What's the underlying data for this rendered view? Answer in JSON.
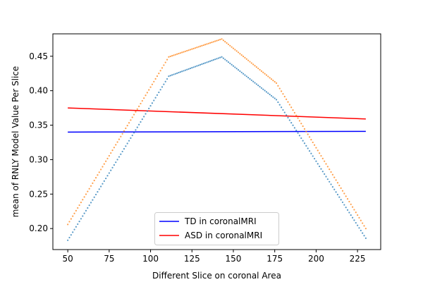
{
  "chart_data": {
    "type": "line",
    "title": "",
    "xlabel": "Different Slice on coronal Area",
    "ylabel": "mean of RNLY Model Value Per Slice",
    "xlim": [
      41,
      239
    ],
    "ylim": [
      0.1695,
      0.4825
    ],
    "xticks": [
      50,
      75,
      100,
      125,
      150,
      175,
      200,
      225
    ],
    "yticks": [
      0.2,
      0.25,
      0.3,
      0.35,
      0.4,
      0.45
    ],
    "xtick_labels": [
      "50",
      "75",
      "100",
      "125",
      "150",
      "175",
      "200",
      "225"
    ],
    "ytick_labels": [
      "0.20",
      "0.25",
      "0.30",
      "0.35",
      "0.40",
      "0.45"
    ],
    "grid": false,
    "legend_position": "lower center",
    "series": [
      {
        "name": "TD in coronalMRI",
        "style": "solid",
        "color": "#0000ff",
        "x": [
          50,
          230
        ],
        "y": [
          0.34,
          0.341
        ]
      },
      {
        "name": "ASD in coronalMRI",
        "style": "solid",
        "color": "#ff0000",
        "x": [
          50,
          230
        ],
        "y": [
          0.375,
          0.359
        ]
      },
      {
        "style": "dotted",
        "color": "#1f77b4",
        "x": [
          50,
          111,
          143,
          176,
          230
        ],
        "y": [
          0.183,
          0.421,
          0.449,
          0.387,
          0.186
        ]
      },
      {
        "style": "dotted",
        "color": "#ff7f0e",
        "x": [
          50,
          111,
          143,
          176,
          230
        ],
        "y": [
          0.206,
          0.449,
          0.475,
          0.411,
          0.2
        ]
      }
    ]
  }
}
